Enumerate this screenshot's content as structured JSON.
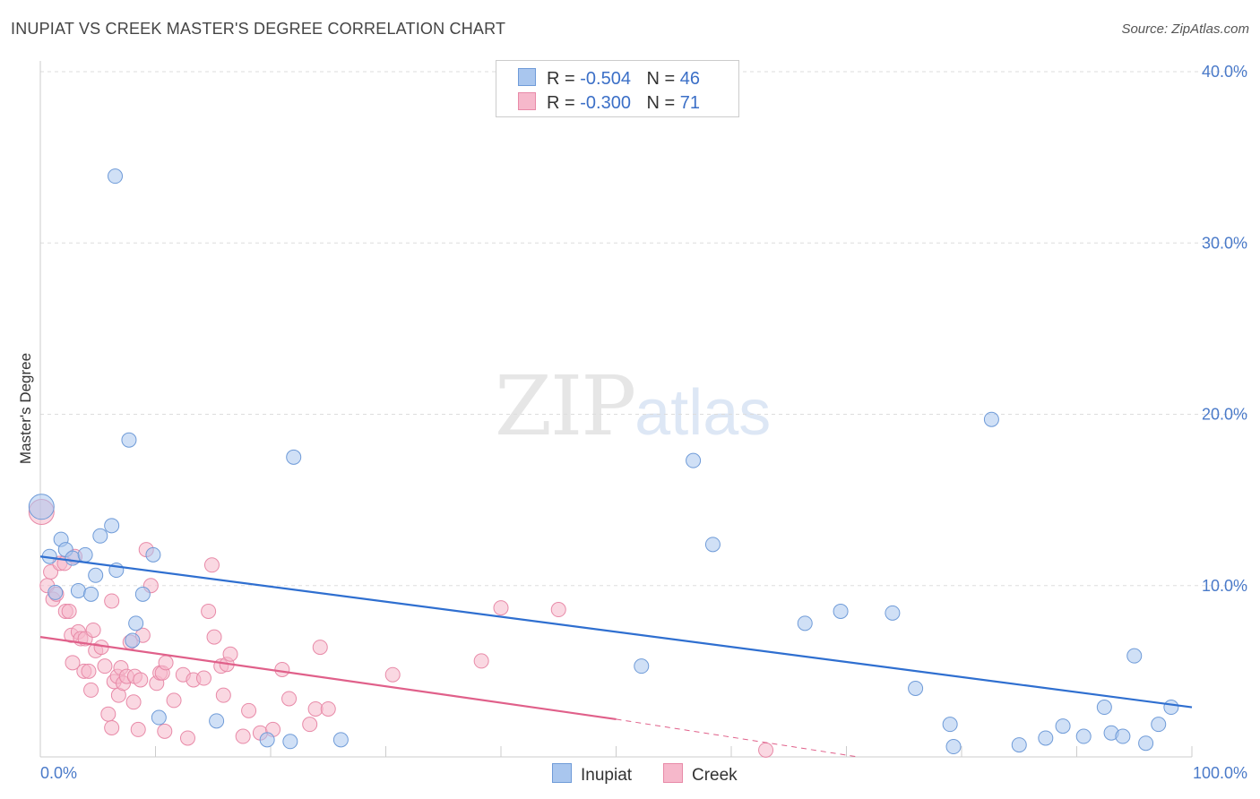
{
  "header": {
    "title": "INUPIAT VS CREEK MASTER'S DEGREE CORRELATION CHART",
    "source": "Source: ZipAtlas.com"
  },
  "watermark": {
    "zip": "ZIP",
    "atlas": "atlas"
  },
  "legend": {
    "rows": [
      {
        "r_label": "R =",
        "r_value": "-0.504",
        "n_label": "N =",
        "n_value": "46"
      },
      {
        "r_label": "R =",
        "r_value": "-0.300",
        "n_label": "N =",
        "n_value": "71"
      }
    ]
  },
  "bottom_legend": {
    "inupiat": "Inupiat",
    "creek": "Creek"
  },
  "colors": {
    "inupiat_fill": "#a9c6ee",
    "inupiat_stroke": "#6f9bd8",
    "inupiat_line": "#2f6fd0",
    "creek_fill": "#f6b8cb",
    "creek_stroke": "#e88aa8",
    "creek_line": "#e0608a",
    "tick_text": "#4a7ac9",
    "grid": "#dddddd"
  },
  "chart_data": {
    "type": "scatter",
    "title": "INUPIAT VS CREEK MASTER'S DEGREE CORRELATION CHART",
    "ylabel": "Master's Degree",
    "xlabel": "",
    "xlim": [
      0,
      100
    ],
    "ylim": [
      0,
      40
    ],
    "x_tick_labels": [
      "0.0%",
      "100.0%"
    ],
    "y_ticks": [
      10,
      20,
      30,
      40
    ],
    "y_tick_labels": [
      "10.0%",
      "20.0%",
      "30.0%",
      "40.0%"
    ],
    "grid": true,
    "legend_position": "top-center",
    "series": [
      {
        "name": "Inupiat",
        "r": -0.504,
        "n": 46,
        "trend": {
          "x": [
            0,
            100
          ],
          "y": [
            11.7,
            2.9
          ]
        },
        "points": [
          [
            0.1,
            14.6
          ],
          [
            0.8,
            11.7
          ],
          [
            1.8,
            12.7
          ],
          [
            2.2,
            12.1
          ],
          [
            2.8,
            11.6
          ],
          [
            1.3,
            9.6
          ],
          [
            3.3,
            9.7
          ],
          [
            3.9,
            11.8
          ],
          [
            4.4,
            9.5
          ],
          [
            4.8,
            10.6
          ],
          [
            5.2,
            12.9
          ],
          [
            6.2,
            13.5
          ],
          [
            6.5,
            33.9
          ],
          [
            6.6,
            10.9
          ],
          [
            7.7,
            18.5
          ],
          [
            8.0,
            6.8
          ],
          [
            8.3,
            7.8
          ],
          [
            8.9,
            9.5
          ],
          [
            9.8,
            11.8
          ],
          [
            10.3,
            2.3
          ],
          [
            15.3,
            2.1
          ],
          [
            19.7,
            1.0
          ],
          [
            21.7,
            0.9
          ],
          [
            22.0,
            17.5
          ],
          [
            26.1,
            1.0
          ],
          [
            52.2,
            5.3
          ],
          [
            56.7,
            17.3
          ],
          [
            58.4,
            12.4
          ],
          [
            66.4,
            7.8
          ],
          [
            69.5,
            8.5
          ],
          [
            74.0,
            8.4
          ],
          [
            76.0,
            4.0
          ],
          [
            79.0,
            1.9
          ],
          [
            79.3,
            0.6
          ],
          [
            82.6,
            19.7
          ],
          [
            85.0,
            0.7
          ],
          [
            87.3,
            1.1
          ],
          [
            88.8,
            1.8
          ],
          [
            90.6,
            1.2
          ],
          [
            92.4,
            2.9
          ],
          [
            93.0,
            1.4
          ],
          [
            94.0,
            1.2
          ],
          [
            95.0,
            5.9
          ],
          [
            96.0,
            0.8
          ],
          [
            97.1,
            1.9
          ],
          [
            98.2,
            2.9
          ]
        ]
      },
      {
        "name": "Creek",
        "r": -0.3,
        "n": 71,
        "trend": {
          "x": [
            0,
            50
          ],
          "y": [
            7.0,
            2.2
          ]
        },
        "trend_extension": {
          "x": [
            50,
            71
          ],
          "y": [
            2.2,
            0.0
          ]
        },
        "points": [
          [
            0.1,
            14.3
          ],
          [
            0.6,
            10.0
          ],
          [
            0.9,
            10.8
          ],
          [
            1.1,
            9.2
          ],
          [
            1.4,
            9.5
          ],
          [
            1.7,
            11.3
          ],
          [
            2.1,
            11.3
          ],
          [
            2.2,
            8.5
          ],
          [
            2.5,
            8.5
          ],
          [
            2.7,
            7.1
          ],
          [
            2.8,
            5.5
          ],
          [
            3.0,
            11.7
          ],
          [
            3.3,
            7.3
          ],
          [
            3.5,
            6.9
          ],
          [
            3.9,
            6.9
          ],
          [
            3.8,
            5.0
          ],
          [
            4.2,
            5.0
          ],
          [
            4.4,
            3.9
          ],
          [
            4.6,
            7.4
          ],
          [
            4.8,
            6.2
          ],
          [
            5.3,
            6.4
          ],
          [
            5.6,
            5.3
          ],
          [
            5.9,
            2.5
          ],
          [
            6.2,
            1.7
          ],
          [
            6.2,
            9.1
          ],
          [
            6.4,
            4.4
          ],
          [
            6.7,
            4.7
          ],
          [
            6.8,
            3.6
          ],
          [
            7.0,
            5.2
          ],
          [
            7.2,
            4.3
          ],
          [
            7.5,
            4.7
          ],
          [
            7.8,
            6.7
          ],
          [
            8.1,
            3.2
          ],
          [
            8.2,
            4.7
          ],
          [
            8.5,
            1.6
          ],
          [
            8.7,
            4.5
          ],
          [
            8.9,
            7.1
          ],
          [
            9.2,
            12.1
          ],
          [
            9.6,
            10.0
          ],
          [
            10.1,
            4.3
          ],
          [
            10.4,
            4.9
          ],
          [
            10.6,
            4.9
          ],
          [
            10.8,
            1.5
          ],
          [
            10.9,
            5.5
          ],
          [
            11.6,
            3.3
          ],
          [
            12.4,
            4.8
          ],
          [
            12.8,
            1.1
          ],
          [
            13.3,
            4.5
          ],
          [
            14.2,
            4.6
          ],
          [
            14.6,
            8.5
          ],
          [
            14.9,
            11.2
          ],
          [
            15.1,
            7.0
          ],
          [
            15.7,
            5.3
          ],
          [
            15.9,
            3.6
          ],
          [
            16.2,
            5.4
          ],
          [
            16.5,
            6.0
          ],
          [
            17.6,
            1.2
          ],
          [
            18.1,
            2.7
          ],
          [
            19.1,
            1.4
          ],
          [
            20.2,
            1.6
          ],
          [
            21.0,
            5.1
          ],
          [
            21.6,
            3.4
          ],
          [
            23.4,
            1.9
          ],
          [
            23.9,
            2.8
          ],
          [
            24.3,
            6.4
          ],
          [
            25.0,
            2.8
          ],
          [
            30.6,
            4.8
          ],
          [
            38.3,
            5.6
          ],
          [
            40.0,
            8.7
          ],
          [
            45.0,
            8.6
          ],
          [
            63.0,
            0.4
          ]
        ]
      }
    ]
  }
}
